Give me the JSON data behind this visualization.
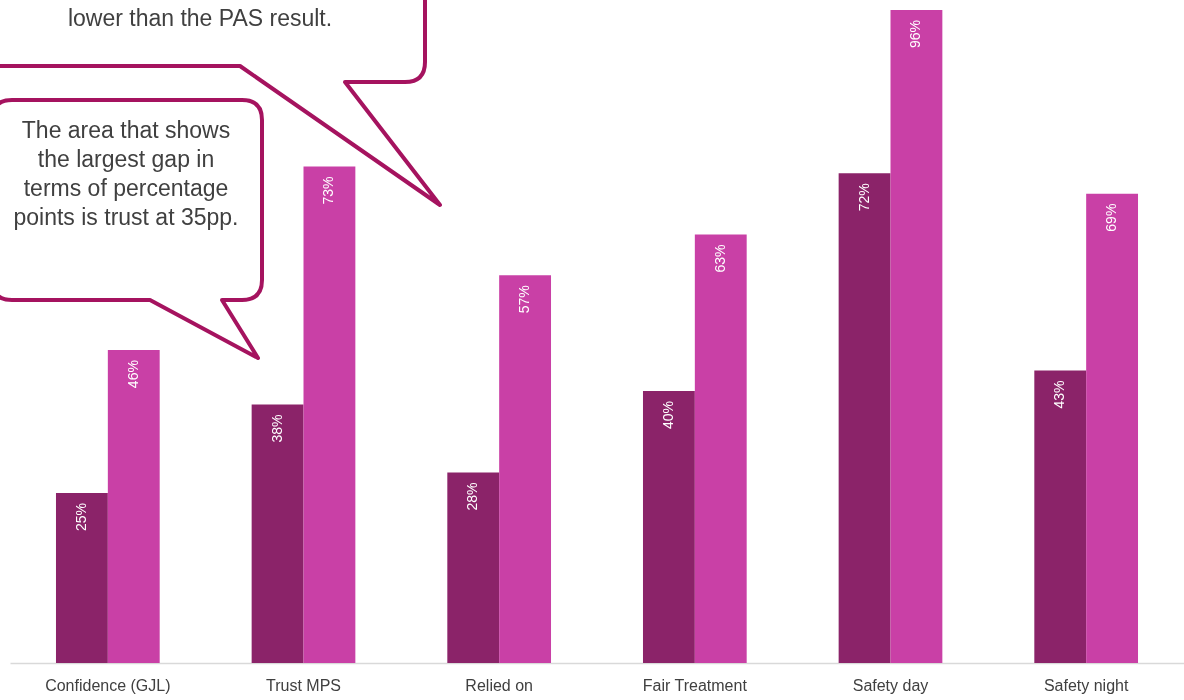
{
  "chart_data": {
    "type": "bar",
    "categories": [
      "Confidence (GJL)",
      "Trust MPS",
      "Relied on",
      "Fair Treatment",
      "Safety day",
      "Safety night"
    ],
    "series": [
      {
        "color": "#8b2369",
        "values": [
          25,
          38,
          28,
          40,
          72,
          43
        ],
        "value_labels": [
          "25%",
          "38%",
          "28%",
          "40%",
          "72%",
          "43%"
        ]
      },
      {
        "color": "#c940a6",
        "values": [
          46,
          73,
          57,
          63,
          96,
          69
        ],
        "value_labels": [
          "46%",
          "73%",
          "57%",
          "63%",
          "96%",
          "69%"
        ]
      }
    ],
    "ylim": [
      0,
      96
    ],
    "annotations": [
      "lower than the PAS result.",
      "The area that shows the largest gap in terms of percentage points is trust at 35pp."
    ]
  }
}
